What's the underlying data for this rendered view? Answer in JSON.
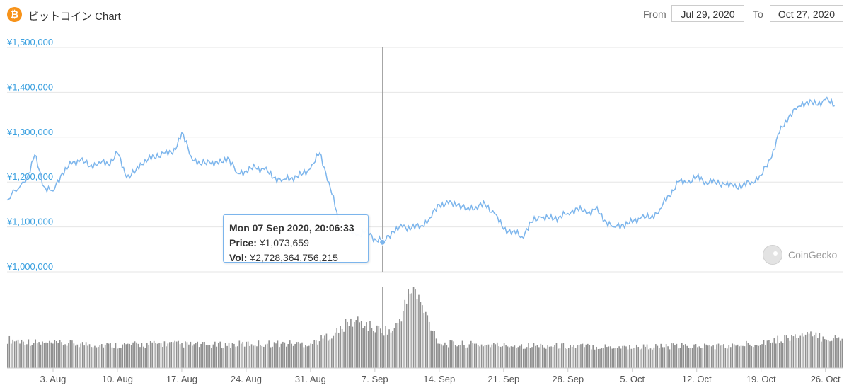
{
  "header": {
    "icon": "bitcoin-icon",
    "title": "ビットコイン Chart",
    "from_label": "From",
    "from_value": "Jul 29, 2020",
    "to_label": "To",
    "to_value": "Oct 27, 2020"
  },
  "tooltip": {
    "date": "Mon 07 Sep 2020, 20:06:33",
    "price_label": "Price:",
    "price_value": "¥1,073,659",
    "vol_label": "Vol:",
    "vol_value": "¥2,728,364,756,215"
  },
  "watermark": "CoinGecko",
  "colors": {
    "line": "#7cb5ec",
    "axis_label": "#3aa0e0",
    "volume": "#8f8f8f",
    "bitcoin": "#f7931a"
  },
  "chart_data": [
    {
      "type": "line",
      "series": [
        {
          "x": [
            "2020-07-29",
            "2020-07-31",
            "2020-08-01",
            "2020-08-02",
            "2020-08-03",
            "2020-08-04",
            "2020-08-05",
            "2020-08-06",
            "2020-08-07",
            "2020-08-08",
            "2020-08-09",
            "2020-08-10",
            "2020-08-11",
            "2020-08-12",
            "2020-08-13",
            "2020-08-14",
            "2020-08-15",
            "2020-08-16",
            "2020-08-17",
            "2020-08-18",
            "2020-08-19",
            "2020-08-20",
            "2020-08-21",
            "2020-08-22",
            "2020-08-23",
            "2020-08-24",
            "2020-08-25",
            "2020-08-26",
            "2020-08-27",
            "2020-08-28",
            "2020-08-29",
            "2020-08-30",
            "2020-08-31",
            "2020-09-01",
            "2020-09-02",
            "2020-09-03",
            "2020-09-04",
            "2020-09-05",
            "2020-09-06",
            "2020-09-07",
            "2020-09-08",
            "2020-09-09",
            "2020-09-10",
            "2020-09-11",
            "2020-09-12",
            "2020-09-13",
            "2020-09-14",
            "2020-09-15",
            "2020-09-16",
            "2020-09-17",
            "2020-09-18",
            "2020-09-19",
            "2020-09-20",
            "2020-09-21",
            "2020-09-22",
            "2020-09-23",
            "2020-09-24",
            "2020-09-25",
            "2020-09-26",
            "2020-09-27",
            "2020-09-28",
            "2020-09-29",
            "2020-09-30",
            "2020-10-01",
            "2020-10-02",
            "2020-10-03",
            "2020-10-04",
            "2020-10-05",
            "2020-10-06",
            "2020-10-07",
            "2020-10-08",
            "2020-10-09",
            "2020-10-10",
            "2020-10-11",
            "2020-10-12",
            "2020-10-13",
            "2020-10-14",
            "2020-10-15",
            "2020-10-16",
            "2020-10-17",
            "2020-10-18",
            "2020-10-19",
            "2020-10-20",
            "2020-10-21",
            "2020-10-22",
            "2020-10-23",
            "2020-10-24",
            "2020-10-25",
            "2020-10-26",
            "2020-10-27"
          ],
          "y": [
            1160000,
            1200000,
            1260000,
            1190000,
            1180000,
            1220000,
            1240000,
            1250000,
            1235000,
            1245000,
            1240000,
            1265000,
            1210000,
            1225000,
            1250000,
            1255000,
            1265000,
            1262000,
            1310000,
            1258000,
            1240000,
            1245000,
            1240000,
            1255000,
            1220000,
            1225000,
            1232000,
            1228000,
            1210000,
            1205000,
            1210000,
            1215000,
            1230000,
            1265000,
            1200000,
            1120000,
            1095000,
            1080000,
            1090000,
            1073659,
            1070000,
            1090000,
            1100000,
            1098000,
            1102000,
            1120000,
            1150000,
            1152000,
            1150000,
            1140000,
            1145000,
            1150000,
            1130000,
            1095000,
            1090000,
            1078000,
            1110000,
            1122000,
            1118000,
            1122000,
            1130000,
            1142000,
            1130000,
            1140000,
            1115000,
            1100000,
            1105000,
            1110000,
            1122000,
            1120000,
            1140000,
            1170000,
            1200000,
            1198000,
            1212000,
            1200000,
            1200000,
            1195000,
            1190000,
            1192000,
            1200000,
            1215000,
            1250000,
            1310000,
            1345000,
            1368000,
            1380000,
            1372000,
            1384000,
            1370000
          ]
        }
      ],
      "ylim": [
        1000000,
        1500000
      ],
      "y_ticks": [
        1000000,
        1100000,
        1200000,
        1300000,
        1400000,
        1500000
      ],
      "y_tick_labels": [
        "¥1,000,000",
        "¥1,100,000",
        "¥1,200,000",
        "¥1,300,000",
        "¥1,400,000",
        "¥1,500,000"
      ],
      "xlim": [
        "2020-07-29",
        "2020-10-27"
      ],
      "x_ticks": [
        "2020-08-03",
        "2020-08-10",
        "2020-08-17",
        "2020-08-24",
        "2020-08-31",
        "2020-09-07",
        "2020-09-14",
        "2020-09-21",
        "2020-09-28",
        "2020-10-05",
        "2020-10-12",
        "2020-10-19",
        "2020-10-26"
      ],
      "x_tick_labels": [
        "3. Aug",
        "10. Aug",
        "17. Aug",
        "24. Aug",
        "31. Aug",
        "7. Sep",
        "14. Sep",
        "21. Sep",
        "28. Sep",
        "5. Oct",
        "12. Oct",
        "19. Oct",
        "26. Oct"
      ],
      "grid": true,
      "highlight_x": "2020-09-07",
      "highlight_y": 1073659
    },
    {
      "type": "bar",
      "name": "Vol",
      "x": [
        "2020-07-29",
        "2020-08-02",
        "2020-08-05",
        "2020-08-10",
        "2020-08-15",
        "2020-08-20",
        "2020-08-25",
        "2020-08-31",
        "2020-09-03",
        "2020-09-04",
        "2020-09-05",
        "2020-09-07",
        "2020-09-09",
        "2020-09-10",
        "2020-09-11",
        "2020-09-14",
        "2020-09-21",
        "2020-09-28",
        "2020-10-05",
        "2020-10-12",
        "2020-10-16",
        "2020-10-21",
        "2020-10-22",
        "2020-10-24",
        "2020-10-27"
      ],
      "values": [
        0.35,
        0.3,
        0.3,
        0.28,
        0.3,
        0.28,
        0.3,
        0.3,
        0.45,
        0.55,
        0.58,
        0.48,
        0.45,
        0.7,
        1.0,
        0.3,
        0.28,
        0.27,
        0.26,
        0.27,
        0.27,
        0.35,
        0.38,
        0.4,
        0.36
      ],
      "unit": "relative"
    }
  ]
}
